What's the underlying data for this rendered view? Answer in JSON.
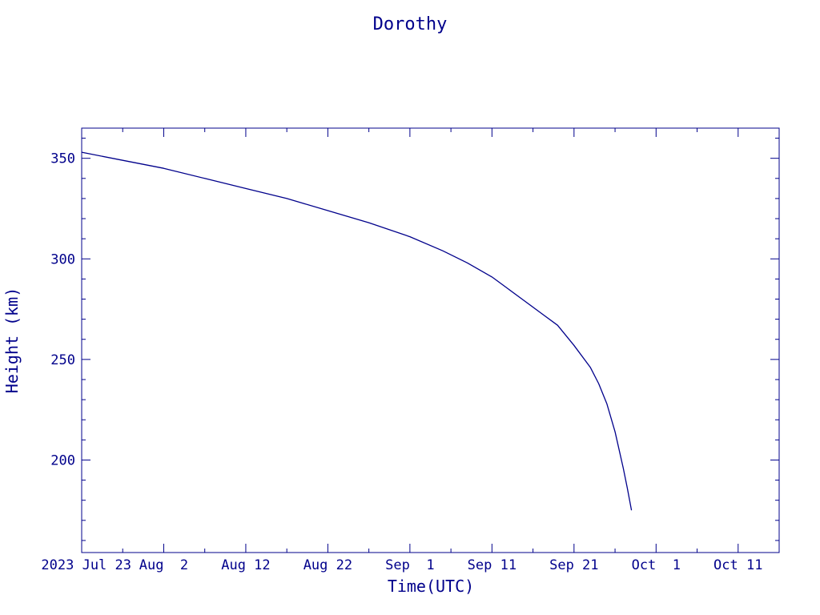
{
  "chart_data": {
    "type": "line",
    "title": "Dorothy",
    "xlabel": "Time(UTC)",
    "ylabel": "Height (km)",
    "color": "#00008b",
    "xlim": [
      "2023-07-23",
      "2023-10-16"
    ],
    "ylim": [
      154,
      365
    ],
    "grid": false,
    "x_tick_labels": [
      {
        "date": "2023-07-23",
        "label": "2023 Jul 23"
      },
      {
        "date": "2023-08-02",
        "label": "Aug  2"
      },
      {
        "date": "2023-08-12",
        "label": "Aug 12"
      },
      {
        "date": "2023-08-22",
        "label": "Aug 22"
      },
      {
        "date": "2023-09-01",
        "label": "Sep  1"
      },
      {
        "date": "2023-09-11",
        "label": "Sep 11"
      },
      {
        "date": "2023-09-21",
        "label": "Sep 21"
      },
      {
        "date": "2023-10-01",
        "label": "Oct  1"
      },
      {
        "date": "2023-10-11",
        "label": "Oct 11"
      }
    ],
    "y_ticks": [
      200,
      250,
      300,
      350
    ],
    "y_tick_labels": [
      "200",
      "250",
      "300",
      "350"
    ],
    "series": [
      {
        "x": [
          "2023-07-23",
          "2023-07-28",
          "2023-08-02",
          "2023-08-07",
          "2023-08-12",
          "2023-08-17",
          "2023-08-22",
          "2023-08-27",
          "2023-09-01",
          "2023-09-05",
          "2023-09-08",
          "2023-09-11",
          "2023-09-13",
          "2023-09-15",
          "2023-09-17",
          "2023-09-19",
          "2023-09-21",
          "2023-09-23",
          "2023-09-24",
          "2023-09-25",
          "2023-09-26",
          "2023-09-27",
          "2023-09-27T12:00",
          "2023-09-28"
        ],
        "y": [
          353,
          349,
          345,
          340,
          335,
          330,
          324,
          318,
          311,
          304,
          298,
          291,
          285,
          279,
          273,
          267,
          257,
          246,
          238,
          228,
          214,
          196,
          186,
          175
        ]
      }
    ]
  }
}
